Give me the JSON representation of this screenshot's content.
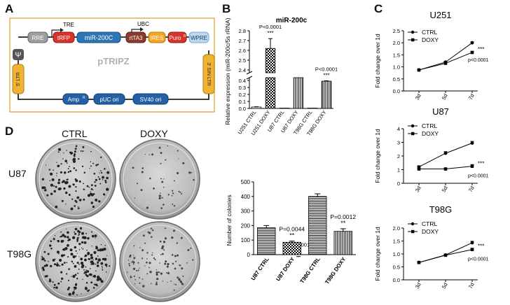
{
  "panels": {
    "A": {
      "letter": "A",
      "title": "pTRIPZ",
      "promoter_left": "TRE",
      "promoter_right": "UBC",
      "elements": [
        "RRE",
        "tRFP",
        "miR-200C",
        "rtTA3",
        "IRES",
        "Puro",
        "WPRE"
      ],
      "puro_sup": "R",
      "ltr_left": "5' LTR",
      "ltr_right": "3' SIN LTR",
      "psi": "Ψ",
      "backbone": [
        "Amp",
        "pUC ori",
        "SV40 ori"
      ],
      "amp_sup": "R"
    },
    "B": {
      "letter": "B"
    },
    "C": {
      "letter": "C"
    },
    "D": {
      "letter": "D",
      "col_labels": [
        "CTRL",
        "DOXY"
      ],
      "row_labels": [
        "U87",
        "T98G"
      ]
    }
  },
  "colors": {
    "element_red": "#d9342b",
    "element_blue": "#2e75b6",
    "element_brown": "#8b3a2e",
    "element_orange": "#f5a623",
    "element_lightblue": "#bdd7ee",
    "element_gray": "#9e9e9e",
    "ltr_gold": "#f2b233",
    "backbone_blue": "#2360a5",
    "border_gold": "#e0b24c"
  },
  "chart_data": [
    {
      "id": "B-top",
      "type": "bar",
      "title": "miR-200c",
      "ylabel": "Relative expression (miR-200c/5s rRNA)",
      "categories": [
        "U251 CTRL",
        "U251 DOXY",
        "U87 CTRL",
        "U87 DOXY",
        "T98G CTRL",
        "T98G DOXY"
      ],
      "values": [
        0.02,
        2.62,
        0.005,
        0.49,
        0.005,
        0.39
      ],
      "errors": [
        0.004,
        0.1,
        0.002,
        0.005,
        0.002,
        0.005
      ],
      "yticks": [
        "0.0",
        "0.1",
        "0.2",
        "0.3",
        "0.4",
        "2.4",
        "2.5",
        "2.6",
        "2.7",
        "2.8"
      ],
      "broken_axis": true,
      "annotations": [
        {
          "bar": 1,
          "p": "P<0.0001",
          "stars": "***"
        },
        {
          "bar": 3,
          "p": "P<0.0001",
          "stars": "***"
        },
        {
          "bar": 5,
          "p": "P<0.0001",
          "stars": "***"
        }
      ]
    },
    {
      "id": "B-bottom",
      "type": "bar",
      "ylabel": "Number of colonies",
      "categories": [
        "U87 CTRL",
        "U87 DOXY",
        "T98G CTRL",
        "T98G DOXY"
      ],
      "values": [
        185,
        85,
        400,
        160
      ],
      "errors": [
        15,
        8,
        18,
        18
      ],
      "ylim": [
        0,
        500
      ],
      "yticks": [
        "0",
        "100",
        "200",
        "300",
        "400",
        "500"
      ],
      "annotations": [
        {
          "bar": 1,
          "p": "P=0.0044",
          "stars": "**"
        },
        {
          "bar": 3,
          "p": "P=0.0012",
          "stars": "**"
        }
      ]
    },
    {
      "id": "C-U251",
      "type": "line",
      "title": "U251",
      "ylabel": "Fold change over 1d",
      "categories": [
        "3d",
        "5d",
        "7d"
      ],
      "ylim": [
        0,
        2.5
      ],
      "yticks": [
        "0.0",
        "0.5",
        "1.0",
        "1.5",
        "2.0",
        "2.5"
      ],
      "series": [
        {
          "name": "CTRL",
          "values": [
            0.87,
            1.2,
            2.0
          ],
          "errors": [
            0.02,
            0.03,
            0.04
          ]
        },
        {
          "name": "DOXY",
          "values": [
            0.87,
            1.15,
            1.6
          ],
          "errors": [
            0.02,
            0.03,
            0.04
          ]
        }
      ],
      "stars": "***",
      "p": "p<0.0001"
    },
    {
      "id": "C-U87",
      "type": "line",
      "title": "U87",
      "ylabel": "Fold change over 1d",
      "categories": [
        "3d",
        "5d",
        "7d"
      ],
      "ylim": [
        0,
        4
      ],
      "yticks": [
        "0",
        "1",
        "2",
        "3",
        "4"
      ],
      "series": [
        {
          "name": "CTRL",
          "values": [
            1.2,
            2.2,
            2.95
          ],
          "errors": [
            0.08,
            0.12,
            0.12
          ]
        },
        {
          "name": "DOXY",
          "values": [
            1.05,
            1.05,
            1.25
          ],
          "errors": [
            0.05,
            0.05,
            0.12
          ]
        }
      ],
      "stars": "***",
      "p": "p<0.0001"
    },
    {
      "id": "C-T98G",
      "type": "line",
      "title": "T98G",
      "ylabel": "Fold change over 1d",
      "categories": [
        "3d",
        "5d",
        "7d"
      ],
      "ylim": [
        0,
        2.0
      ],
      "yticks": [
        "0.0",
        "0.5",
        "1.0",
        "1.5",
        "2.0"
      ],
      "series": [
        {
          "name": "CTRL",
          "values": [
            0.67,
            0.96,
            1.43
          ],
          "errors": [
            0.02,
            0.03,
            0.06
          ]
        },
        {
          "name": "DOXY",
          "values": [
            0.67,
            0.95,
            1.17
          ],
          "errors": [
            0.02,
            0.03,
            0.05
          ]
        }
      ],
      "stars": "***",
      "p": "p<0.0001"
    }
  ]
}
